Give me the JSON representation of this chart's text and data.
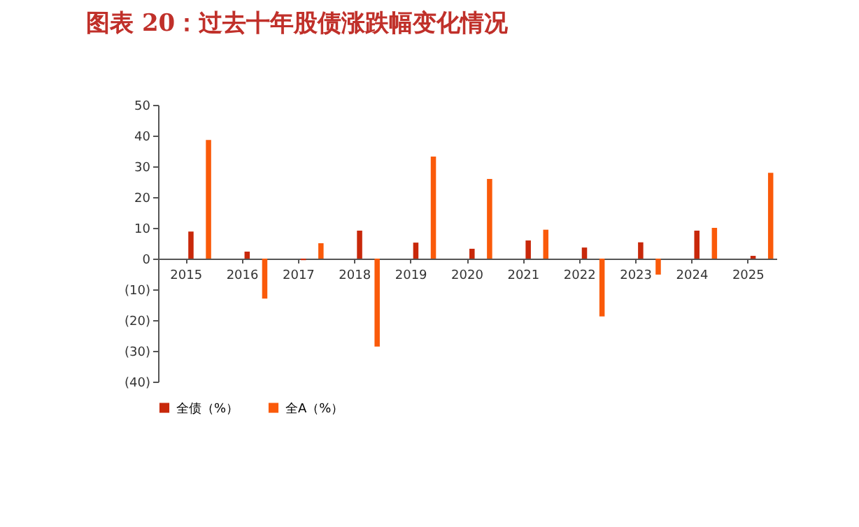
{
  "chart_data": {
    "type": "bar",
    "title": "图表 20：过去十年股债涨跌幅变化情况",
    "categories": [
      "2015",
      "2016",
      "2017",
      "2018",
      "2019",
      "2020",
      "2021",
      "2022",
      "2023",
      "2024",
      "2025"
    ],
    "series": [
      {
        "name": "全债（%）",
        "color": "#c8280a",
        "values": [
          8.8,
          2.3,
          -0.5,
          9.1,
          5.2,
          3.2,
          5.9,
          3.6,
          5.3,
          9.1,
          0.9
        ]
      },
      {
        "name": "全A（%）",
        "color": "#fa5a0a",
        "values": [
          38.6,
          -13.0,
          5.0,
          -28.6,
          33.2,
          25.9,
          9.4,
          -18.8,
          -5.2,
          10.0,
          27.9
        ]
      }
    ],
    "ylim": [
      -40,
      50
    ],
    "yticks": [
      {
        "value": -40,
        "label": "(40)"
      },
      {
        "value": -30,
        "label": "(30)"
      },
      {
        "value": -20,
        "label": "(20)"
      },
      {
        "value": -10,
        "label": "(10)"
      },
      0,
      10,
      20,
      30,
      40,
      50
    ],
    "grid": false,
    "legend": "bottom"
  }
}
